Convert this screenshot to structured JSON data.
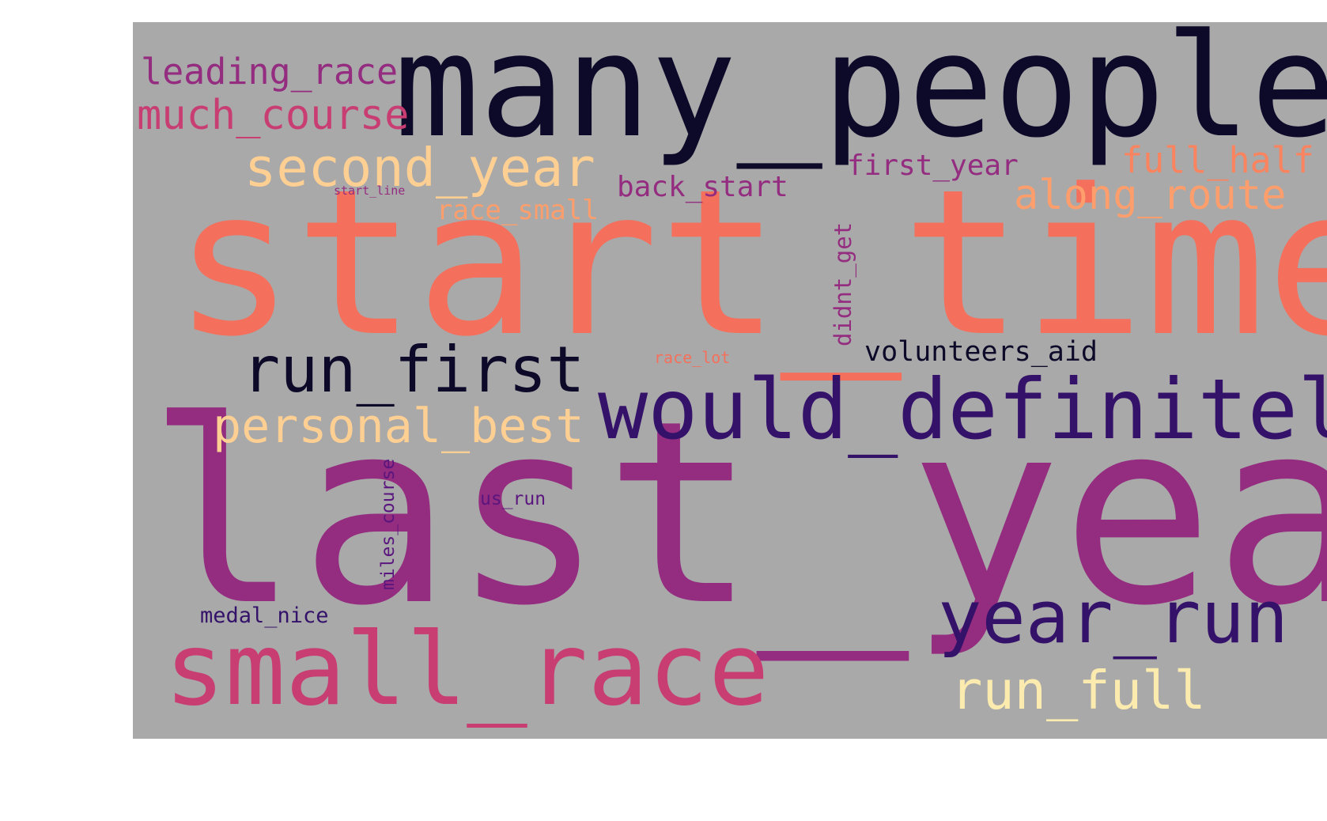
{
  "background_color": "#a9a9a9",
  "words": [
    {
      "key": "start_time",
      "text": "start_time",
      "color": "#f4705c"
    },
    {
      "key": "last_year",
      "text": "last_year",
      "color": "#942c80"
    },
    {
      "key": "many_people",
      "text": "many_people",
      "color": "#0d0a29"
    },
    {
      "key": "would_definitely",
      "text": "would_definitely",
      "color": "#35126a"
    },
    {
      "key": "small_race",
      "text": "small_race",
      "color": "#c83e73"
    },
    {
      "key": "year_run",
      "text": "year_run",
      "color": "#35126a"
    },
    {
      "key": "run_first",
      "text": "run_first",
      "color": "#0d0a29"
    },
    {
      "key": "second_year",
      "text": "second_year",
      "color": "#fecf92"
    },
    {
      "key": "personal_best",
      "text": "personal_best",
      "color": "#fecf92"
    },
    {
      "key": "run_full",
      "text": "run_full",
      "color": "#fcebae"
    },
    {
      "key": "much_course",
      "text": "much_course",
      "color": "#c83e73"
    },
    {
      "key": "leading_race",
      "text": "leading_race",
      "color": "#942c80"
    },
    {
      "key": "along_route",
      "text": "along_route",
      "color": "#fd9e6c"
    },
    {
      "key": "full_half",
      "text": "full_half",
      "color": "#f9845f"
    },
    {
      "key": "first_year",
      "text": "first_year",
      "color": "#942c80"
    },
    {
      "key": "back_start",
      "text": "back_start",
      "color": "#942c80"
    },
    {
      "key": "race_small",
      "text": "race_small",
      "color": "#fd9e6c"
    },
    {
      "key": "volunteers_aid",
      "text": "volunteers_aid",
      "color": "#0d0a29"
    },
    {
      "key": "didnt_get",
      "text": "didnt_get",
      "color": "#942c80"
    },
    {
      "key": "miles_course",
      "text": "miles_course",
      "color": "#5a167e"
    },
    {
      "key": "medal_nice",
      "text": "medal_nice",
      "color": "#35126a"
    },
    {
      "key": "us_run",
      "text": "us_run",
      "color": "#5a167e"
    },
    {
      "key": "race_lot",
      "text": "race_lot",
      "color": "#f4705c"
    },
    {
      "key": "start_line",
      "text": "start_line",
      "color": "#942c80"
    }
  ]
}
